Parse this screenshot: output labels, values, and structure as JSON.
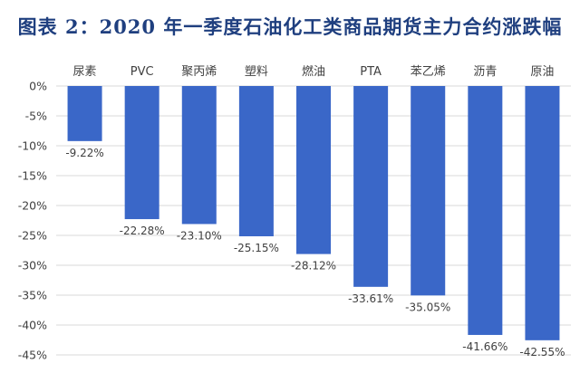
{
  "chart_data": {
    "type": "bar",
    "title": "图表 2：2020 年一季度石油化工类商品期货主力合约涨跌幅",
    "categories": [
      "尿素",
      "PVC",
      "聚丙烯",
      "塑料",
      "燃油",
      "PTA",
      "苯乙烯",
      "沥青",
      "原油"
    ],
    "values": [
      -9.22,
      -22.28,
      -23.1,
      -25.15,
      -28.12,
      -33.61,
      -35.05,
      -41.66,
      -42.55
    ],
    "data_labels": [
      "-9.22%",
      "-22.28%",
      "-23.10%",
      "-25.15%",
      "-28.12%",
      "-33.61%",
      "-35.05%",
      "-41.66%",
      "-42.55%"
    ],
    "ylim": [
      -45,
      0
    ],
    "yticks": [
      "0%",
      "-5%",
      "-10%",
      "-15%",
      "-20%",
      "-25%",
      "-30%",
      "-35%",
      "-40%",
      "-45%"
    ],
    "ytick_values": [
      0,
      -5,
      -10,
      -15,
      -20,
      -25,
      -30,
      -35,
      -40,
      -45
    ],
    "xlabel": "",
    "ylabel": "",
    "grid": true,
    "legend": "none",
    "bar_color": "#3a67c8",
    "grid_color": "#d9d9d9",
    "text_color": "#404040",
    "title_color": "#1f3f7f"
  }
}
